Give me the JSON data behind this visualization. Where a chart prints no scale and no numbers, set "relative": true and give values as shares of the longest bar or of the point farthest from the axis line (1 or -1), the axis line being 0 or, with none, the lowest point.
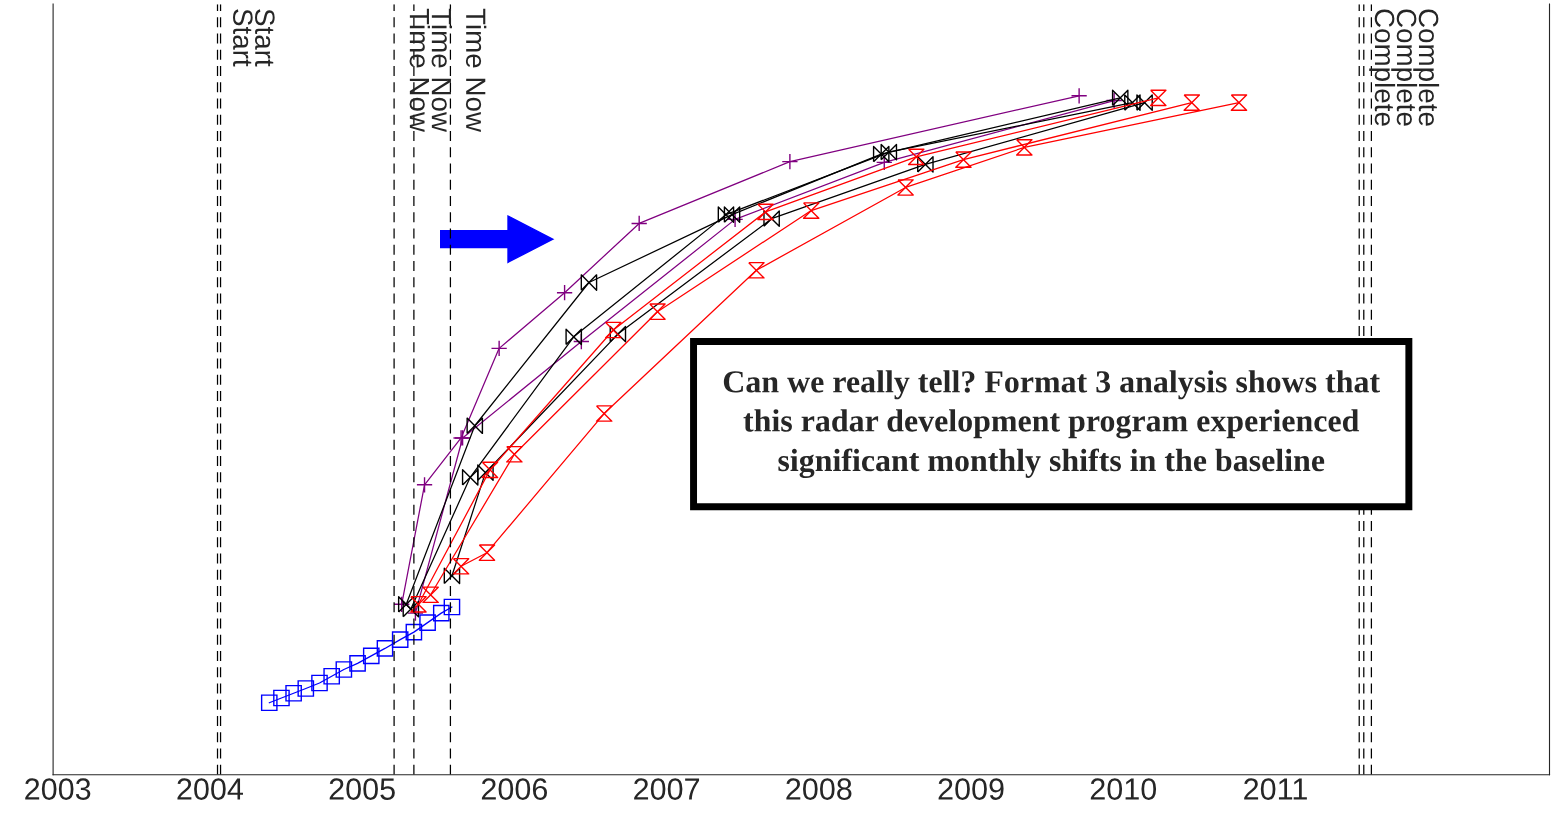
{
  "chart_data": {
    "type": "line",
    "relative": true,
    "xlim": [
      2002.97,
      2012.8
    ],
    "xticks": [
      2003,
      2004,
      2005,
      2006,
      2007,
      2008,
      2009,
      2010,
      2011
    ],
    "series": [
      {
        "color": "#0000ff",
        "marker": "square",
        "x": [
          2004.39,
          2004.47,
          2004.55,
          2004.63,
          2004.72,
          2004.8,
          2004.88,
          2004.97,
          2005.06,
          2005.15,
          2005.25,
          2005.34,
          2005.43,
          2005.52,
          2005.59
        ],
        "values": [
          0.106,
          0.113,
          0.12,
          0.127,
          0.135,
          0.145,
          0.155,
          0.164,
          0.175,
          0.186,
          0.199,
          0.21,
          0.224,
          0.238,
          0.247
        ]
      },
      {
        "color": "#800080",
        "marker": "cross",
        "x": [
          2005.26,
          2005.41,
          2005.65,
          2005.9,
          2006.33,
          2006.82,
          2007.81,
          2009.71
        ],
        "values": [
          0.251,
          0.427,
          0.496,
          0.628,
          0.71,
          0.812,
          0.903,
          1.0
        ]
      },
      {
        "color": "#800080",
        "marker": "cross",
        "x": [
          2005.35,
          2005.66,
          2006.44,
          2007.45,
          2008.43,
          2009.94
        ],
        "values": [
          0.238,
          0.496,
          0.638,
          0.818,
          0.902,
          0.993
        ]
      },
      {
        "color": "#000000",
        "marker": "diamond",
        "x": [
          2005.29,
          2005.74,
          2006.49,
          2007.43,
          2008.41,
          2009.98
        ],
        "values": [
          0.251,
          0.514,
          0.725,
          0.825,
          0.914,
          0.997
        ]
      },
      {
        "color": "#000000",
        "marker": "diamond",
        "x": [
          2005.32,
          2005.71,
          2006.39,
          2007.39,
          2008.46,
          2010.06
        ],
        "values": [
          0.244,
          0.438,
          0.645,
          0.825,
          0.917,
          0.99
        ]
      },
      {
        "color": "#000000",
        "marker": "diamond",
        "x": [
          2005.59,
          2005.81,
          2006.68,
          2007.69,
          2008.7,
          2010.14
        ],
        "values": [
          0.293,
          0.445,
          0.649,
          0.819,
          0.899,
          0.99
        ]
      },
      {
        "color": "#ff0000",
        "marker": "diamond",
        "x": [
          2005.37,
          2005.84,
          2006.65,
          2007.65,
          2008.64,
          2010.23
        ],
        "values": [
          0.251,
          0.449,
          0.655,
          0.829,
          0.91,
          0.997
        ]
      },
      {
        "color": "#ff0000",
        "marker": "diamond",
        "x": [
          2005.45,
          2006.0,
          2006.94,
          2007.95,
          2008.95,
          2010.45
        ],
        "values": [
          0.265,
          0.472,
          0.682,
          0.831,
          0.906,
          0.99
        ]
      },
      {
        "color": "#ff0000",
        "marker": "diamond",
        "x": [
          2005.65,
          2005.82,
          2006.59,
          2007.59,
          2008.57,
          2009.35,
          2010.76
        ],
        "values": [
          0.307,
          0.327,
          0.532,
          0.743,
          0.865,
          0.924,
          0.99
        ]
      }
    ],
    "ref_lines": [
      {
        "axis": "x",
        "value": 2004.05,
        "label": "Start",
        "line_style": "dashed"
      },
      {
        "axis": "x",
        "value": 2004.07,
        "label": "Start",
        "line_style": "dashed"
      },
      {
        "axis": "x",
        "value": 2005.21,
        "label": "Time Now",
        "line_style": "dashed"
      },
      {
        "axis": "x",
        "value": 2005.34,
        "label": "Time Now",
        "line_style": "dashed"
      },
      {
        "axis": "x",
        "value": 2005.58,
        "label": "Time Now",
        "line_style": "dashed"
      },
      {
        "axis": "x",
        "value": 2011.55,
        "label": "Complete",
        "line_style": "dashed"
      },
      {
        "axis": "x",
        "value": 2011.58,
        "label": "Complete",
        "line_style": "dashed"
      },
      {
        "axis": "x",
        "value": 2011.63,
        "label": "Complete",
        "line_style": "dashed"
      }
    ],
    "annotations": [
      "Can we really tell? Format 3 analysis shows that this radar development program experienced significant monthly shifts in the baseline"
    ],
    "grid": false,
    "legend": false
  }
}
